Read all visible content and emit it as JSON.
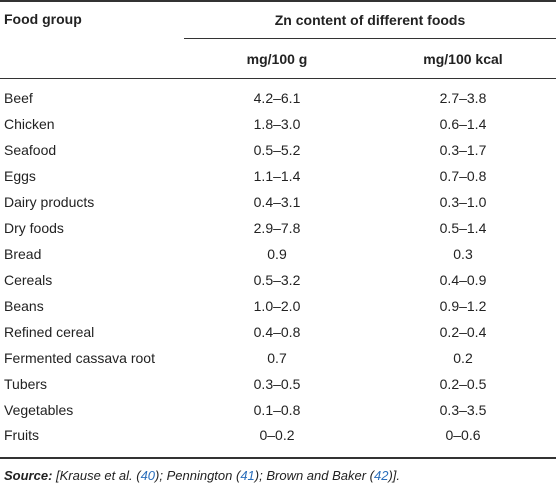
{
  "table": {
    "header": {
      "food_group": "Food group",
      "zn_content": "Zn content of different foods",
      "col_mg_100g": "mg/100 g",
      "col_mg_100kcal": "mg/100 kcal"
    },
    "rows": [
      {
        "food": "Beef",
        "mg100g": "4.2–6.1",
        "mg100kcal": "2.7–3.8"
      },
      {
        "food": "Chicken",
        "mg100g": "1.8–3.0",
        "mg100kcal": "0.6–1.4"
      },
      {
        "food": "Seafood",
        "mg100g": "0.5–5.2",
        "mg100kcal": "0.3–1.7"
      },
      {
        "food": "Eggs",
        "mg100g": "1.1–1.4",
        "mg100kcal": "0.7–0.8"
      },
      {
        "food": "Dairy products",
        "mg100g": "0.4–3.1",
        "mg100kcal": "0.3–1.0"
      },
      {
        "food": "Dry foods",
        "mg100g": "2.9–7.8",
        "mg100kcal": "0.5–1.4"
      },
      {
        "food": "Bread",
        "mg100g": "0.9",
        "mg100kcal": "0.3"
      },
      {
        "food": "Cereals",
        "mg100g": "0.5–3.2",
        "mg100kcal": "0.4–0.9"
      },
      {
        "food": "Beans",
        "mg100g": "1.0–2.0",
        "mg100kcal": "0.9–1.2"
      },
      {
        "food": "Refined cereal",
        "mg100g": "0.4–0.8",
        "mg100kcal": "0.2–0.4"
      },
      {
        "food": "Fermented cassava root",
        "mg100g": "0.7",
        "mg100kcal": "0.2"
      },
      {
        "food": "Tubers",
        "mg100g": "0.3–0.5",
        "mg100kcal": "0.2–0.5"
      },
      {
        "food": "Vegetables",
        "mg100g": "0.1–0.8",
        "mg100kcal": "0.3–3.5"
      },
      {
        "food": "Fruits",
        "mg100g": "0–0.2",
        "mg100kcal": "0–0.6"
      }
    ]
  },
  "source": {
    "label": "Source:",
    "open": " [Krause et al. (",
    "ref1": "40",
    "mid1": "); Pennington (",
    "ref2": "41",
    "mid2": "); Brown and Baker (",
    "ref3": "42",
    "close": ")]."
  }
}
